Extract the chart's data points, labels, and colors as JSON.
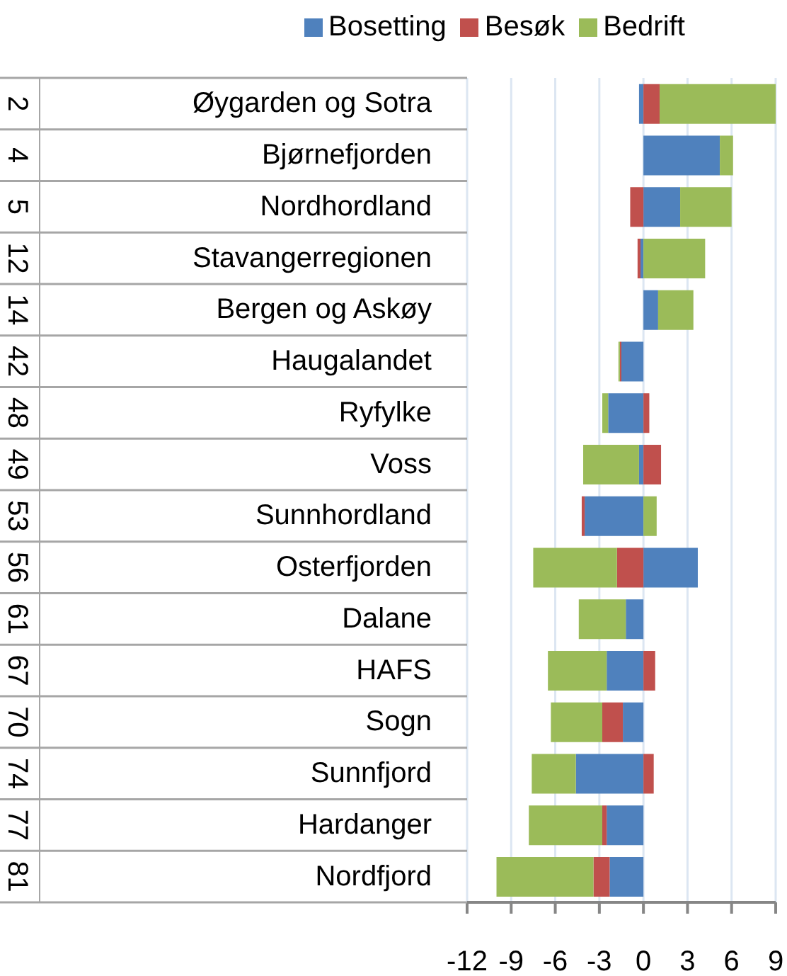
{
  "chart_data": {
    "type": "bar",
    "orientation": "horizontal",
    "stacked": true,
    "categories": [
      "Øygarden og Sotra",
      "Bjørnefjorden",
      "Nordhordland",
      "Stavangerregionen",
      "Bergen og Askøy",
      "Haugalandet",
      "Ryfylke",
      "Voss",
      "Sunnhordland",
      "Osterfjorden",
      "Dalane",
      "HAFS",
      "Sogn",
      "Sunnfjord",
      "Hardanger",
      "Nordfjord"
    ],
    "series": [
      {
        "name": "Bosetting",
        "color": "#4f81bd",
        "values": [
          -0.3,
          5.2,
          2.5,
          -0.2,
          1.0,
          -1.5,
          -2.4,
          -0.3,
          -4.0,
          3.7,
          -1.2,
          -2.5,
          -1.4,
          -4.6,
          -2.5,
          -2.3
        ]
      },
      {
        "name": "Besøk",
        "color": "#c0504d",
        "values": [
          1.1,
          0,
          -0.9,
          -0.2,
          0,
          -0.1,
          0.4,
          1.2,
          -0.2,
          -1.8,
          0,
          0.8,
          -1.4,
          0.7,
          -0.3,
          -1.1
        ]
      },
      {
        "name": "Bedrift",
        "color": "#9bbb59",
        "values": [
          7.9,
          0.9,
          3.5,
          4.2,
          2.4,
          -0.1,
          -0.4,
          -3.8,
          0.9,
          -5.7,
          -3.2,
          -4.0,
          -3.5,
          -3.0,
          -5.0,
          -6.6
        ]
      }
    ],
    "annotations": [
      "2",
      "4",
      "5",
      "12",
      "14",
      "42",
      "48",
      "49",
      "53",
      "56",
      "61",
      "67",
      "70",
      "74",
      "77",
      "81"
    ],
    "xlim": [
      -12,
      9
    ],
    "xticks": [
      -12,
      -9,
      -6,
      -3,
      0,
      3,
      6,
      9
    ],
    "grid": "x",
    "legend": "top"
  }
}
